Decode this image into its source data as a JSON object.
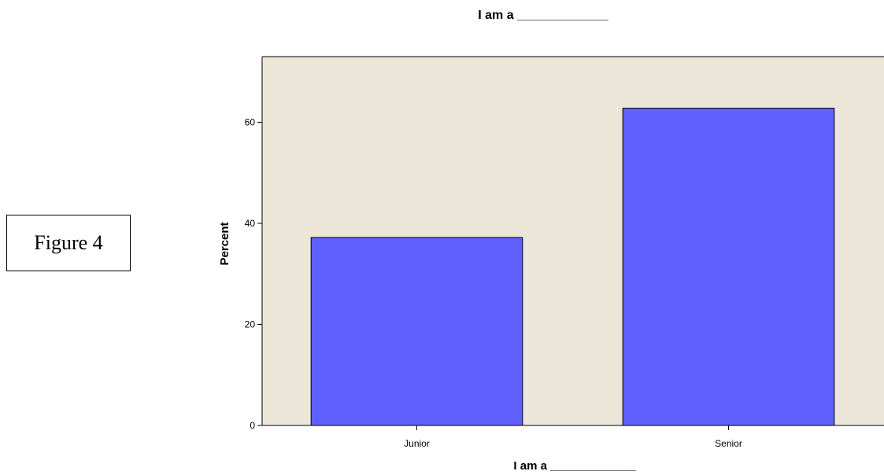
{
  "figure_label": "Figure 4",
  "chart_data": {
    "type": "bar",
    "title": "I am a _____________",
    "xlabel": "I am a _____________",
    "ylabel": "Percent",
    "categories": [
      "Junior",
      "Senior"
    ],
    "values": [
      37.2,
      62.8
    ],
    "ylim": [
      0,
      73
    ],
    "yticks": [
      "0",
      "20",
      "40",
      "60"
    ],
    "grid": false,
    "colors": {
      "bar_fill": "#5f60fe",
      "plot_background": "#ebe6d8"
    }
  }
}
